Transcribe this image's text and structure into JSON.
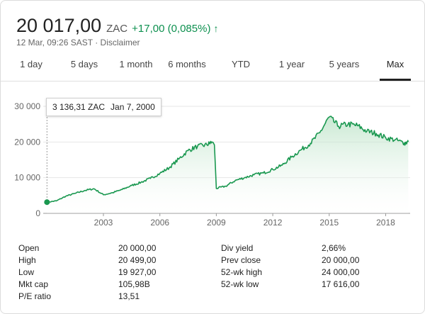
{
  "header": {
    "price": "20 017,00",
    "currency": "ZAC",
    "change": "+17,00 (0,085%)",
    "arrow": "↑",
    "timestamp": "12 Mar, 09:26 SAST",
    "separator": "·",
    "disclaimer": "Disclaimer"
  },
  "tabs": [
    {
      "label": "1 day",
      "active": false
    },
    {
      "label": "5 days",
      "active": false
    },
    {
      "label": "1 month",
      "active": false
    },
    {
      "label": "6 months",
      "active": false
    },
    {
      "label": "YTD",
      "active": false
    },
    {
      "label": "1 year",
      "active": false
    },
    {
      "label": "5 years",
      "active": false
    },
    {
      "label": "Max",
      "active": true
    }
  ],
  "tooltip": {
    "value": "3 136,31 ZAC",
    "date": "Jan 7, 2000"
  },
  "colors": {
    "up": "#0d904f",
    "line": "#1a9850",
    "fill": "#e6f4ea"
  },
  "stats": {
    "left": [
      {
        "label": "Open",
        "value": "20 000,00"
      },
      {
        "label": "High",
        "value": "20 499,00"
      },
      {
        "label": "Low",
        "value": "19 927,00"
      },
      {
        "label": "Mkt cap",
        "value": "105,98B"
      },
      {
        "label": "P/E ratio",
        "value": "13,51"
      }
    ],
    "right": [
      {
        "label": "Div yield",
        "value": "2,66%"
      },
      {
        "label": "Prev close",
        "value": "20 000,00"
      },
      {
        "label": "52-wk high",
        "value": "24 000,00"
      },
      {
        "label": "52-wk low",
        "value": "17 616,00"
      }
    ]
  },
  "chart_data": {
    "type": "area",
    "y_ticks": [
      "30 000",
      "20 000",
      "10 000",
      "0"
    ],
    "y_tick_values": [
      30000,
      20000,
      10000,
      0
    ],
    "x_ticks": [
      "2003",
      "2006",
      "2009",
      "2012",
      "2015",
      "2018"
    ],
    "x_tick_values": [
      2003,
      2006,
      2009,
      2012,
      2015,
      2018
    ],
    "xlim": [
      1999.8,
      2019.3
    ],
    "ylim": [
      0,
      30000
    ],
    "grid": true,
    "series": [
      {
        "x": [
          2000.0,
          2000.5,
          2001.0,
          2001.5,
          2002.0,
          2002.5,
          2003.0,
          2003.5,
          2004.0,
          2004.5,
          2005.0,
          2005.5,
          2006.0,
          2006.5,
          2007.0,
          2007.5,
          2008.0,
          2008.5,
          2008.75,
          2008.9,
          2009.0,
          2009.5,
          2010.0,
          2010.5,
          2011.0,
          2011.5,
          2012.0,
          2012.5,
          2013.0,
          2013.5,
          2014.0,
          2014.5,
          2015.0,
          2015.5,
          2016.0,
          2016.5,
          2017.0,
          2017.5,
          2018.0,
          2018.5,
          2019.0,
          2019.2
        ],
        "y": [
          3136,
          3500,
          4800,
          5600,
          6400,
          6900,
          5200,
          5800,
          6700,
          7800,
          8700,
          9800,
          11200,
          12800,
          15200,
          17600,
          18800,
          19200,
          20000,
          19200,
          7000,
          7600,
          9200,
          10000,
          10800,
          11300,
          12300,
          13500,
          15800,
          17800,
          19600,
          22600,
          27000,
          24400,
          25000,
          24600,
          23000,
          22400,
          21200,
          20600,
          19700,
          20017
        ]
      }
    ]
  }
}
